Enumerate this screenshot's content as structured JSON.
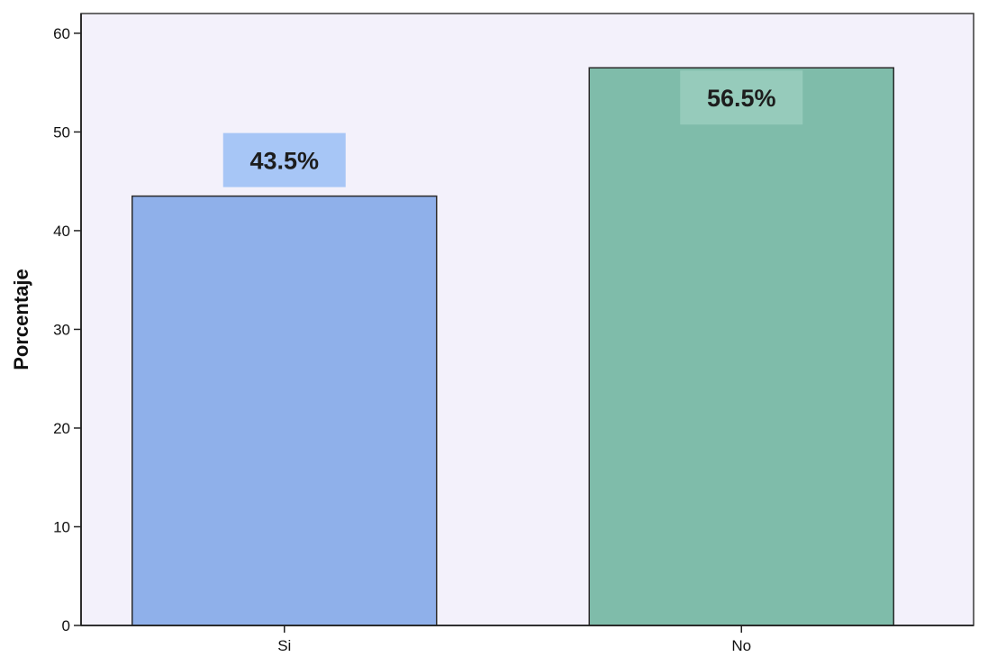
{
  "chart_data": {
    "type": "bar",
    "title": "",
    "xlabel": "",
    "ylabel": "Porcentaje",
    "categories": [
      "Si",
      "No"
    ],
    "values": [
      43.5,
      56.5
    ],
    "data_labels": [
      "43.5%",
      "56.5%"
    ],
    "ylim": [
      0,
      62
    ],
    "yticks": [
      0,
      10,
      20,
      30,
      40,
      50,
      60
    ],
    "ytick_labels": [
      "0",
      "10",
      "20",
      "30",
      "40",
      "50",
      "60"
    ],
    "grid": false,
    "legend": "none",
    "colors": {
      "background": "#f3f1fb",
      "bars": [
        "#8fb0ea",
        "#7fbcaa"
      ],
      "label_boxes": [
        "#a7c6f6",
        "#96cbbb"
      ],
      "outline": "#2b2b2b"
    }
  }
}
